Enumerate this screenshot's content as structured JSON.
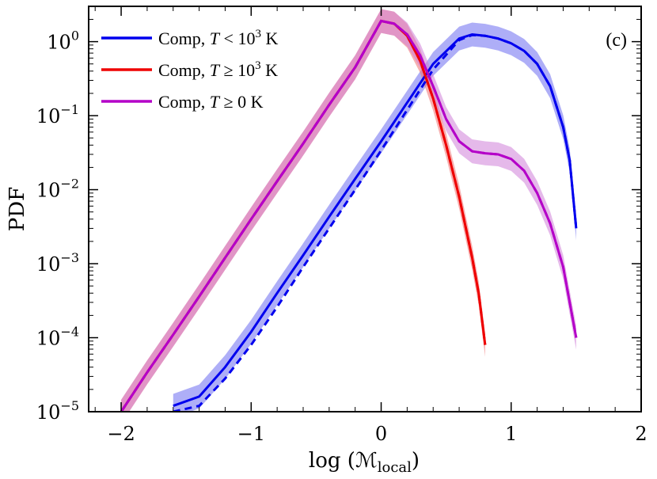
{
  "chart_data": {
    "type": "line",
    "panel_label": "(c)",
    "xlabel": "log (ℳ",
    "xlabel_sub": "local",
    "xlabel_close": ")",
    "ylabel": "PDF",
    "xlim": [
      -2.25,
      2.0
    ],
    "ylim": [
      1e-05,
      3.0
    ],
    "yscale": "log",
    "x_ticks": [
      -2,
      -1,
      0,
      1,
      2
    ],
    "x_tick_labels": [
      "−2",
      "−1",
      "0",
      "1",
      "2"
    ],
    "y_ticks": [
      1e-05,
      0.0001,
      0.001,
      0.01,
      0.1,
      1
    ],
    "y_tick_labels": [
      {
        "base": "10",
        "exp": "−5"
      },
      {
        "base": "10",
        "exp": "−4"
      },
      {
        "base": "10",
        "exp": "−3"
      },
      {
        "base": "10",
        "exp": "−2"
      },
      {
        "base": "10",
        "exp": "−1"
      },
      {
        "base": "10",
        "exp": "0"
      }
    ],
    "grid": false,
    "legend_position": "top-left",
    "series": [
      {
        "legend": {
          "prefix": "Comp, ",
          "var": "T",
          "rel": " < 10",
          "exp": "3",
          "unit": " K"
        },
        "color": "#0000ee",
        "band_color": "#6b6bf0",
        "x": [
          -1.6,
          -1.4,
          -1.2,
          -1.0,
          -0.8,
          -0.6,
          -0.4,
          -0.2,
          0.0,
          0.2,
          0.4,
          0.6,
          0.7,
          0.8,
          0.9,
          1.0,
          1.1,
          1.2,
          1.3,
          1.4,
          1.45,
          1.5
        ],
        "y": [
          1.2e-05,
          1.6e-05,
          4e-05,
          0.00012,
          0.0004,
          0.0013,
          0.0043,
          0.014,
          0.045,
          0.15,
          0.5,
          1.1,
          1.25,
          1.2,
          1.1,
          0.95,
          0.75,
          0.5,
          0.25,
          0.07,
          0.025,
          0.003
        ],
        "dashed_y": [
          1e-05,
          1.2e-05,
          2.8e-05,
          8e-05,
          0.00026,
          0.0009,
          0.003,
          0.01,
          0.034,
          0.12,
          0.42,
          1.05,
          1.23,
          1.2,
          1.1,
          0.95,
          0.75,
          0.5,
          0.25,
          0.07,
          0.025,
          0.003
        ]
      },
      {
        "legend": {
          "prefix": "Comp, ",
          "var": "T",
          "rel": " ≥ 10",
          "exp": "3",
          "unit": " K"
        },
        "color": "#ee0000",
        "band_color": "#f07070",
        "x": [
          -2.0,
          -1.8,
          -1.6,
          -1.4,
          -1.2,
          -1.0,
          -0.8,
          -0.6,
          -0.4,
          -0.2,
          0.0,
          0.1,
          0.2,
          0.3,
          0.4,
          0.5,
          0.6,
          0.7,
          0.75,
          0.8
        ],
        "y": [
          1e-05,
          3.4e-05,
          0.00011,
          0.00036,
          0.0012,
          0.004,
          0.013,
          0.042,
          0.14,
          0.45,
          1.9,
          1.75,
          1.2,
          0.55,
          0.17,
          0.04,
          0.008,
          0.0012,
          0.0004,
          8e-05
        ],
        "dashed_y": [
          1e-05,
          3.4e-05,
          0.00011,
          0.00036,
          0.0012,
          0.004,
          0.013,
          0.042,
          0.14,
          0.45,
          1.9,
          1.75,
          1.2,
          0.55,
          0.17,
          0.04,
          0.008,
          0.0012,
          0.0004,
          8e-05
        ]
      },
      {
        "legend": {
          "prefix": "Comp, ",
          "var": "T",
          "rel": " ≥ 0",
          "exp": "",
          "unit": " K"
        },
        "color": "#b400c8",
        "band_color": "#d080d8",
        "x": [
          -2.0,
          -1.8,
          -1.6,
          -1.4,
          -1.2,
          -1.0,
          -0.8,
          -0.6,
          -0.4,
          -0.2,
          0.0,
          0.1,
          0.2,
          0.3,
          0.4,
          0.5,
          0.6,
          0.7,
          0.8,
          0.9,
          1.0,
          1.1,
          1.2,
          1.3,
          1.4,
          1.5
        ],
        "y": [
          1e-05,
          3.4e-05,
          0.00011,
          0.00036,
          0.0012,
          0.004,
          0.013,
          0.042,
          0.14,
          0.45,
          1.9,
          1.75,
          1.25,
          0.65,
          0.25,
          0.09,
          0.045,
          0.033,
          0.031,
          0.03,
          0.026,
          0.018,
          0.009,
          0.0035,
          0.0009,
          0.0001
        ],
        "dashed_y": [
          1e-05,
          3.4e-05,
          0.00011,
          0.00036,
          0.0012,
          0.004,
          0.013,
          0.042,
          0.14,
          0.45,
          1.9,
          1.75,
          1.25,
          0.65,
          0.25,
          0.09,
          0.045,
          0.033,
          0.031,
          0.03,
          0.026,
          0.018,
          0.009,
          0.0035,
          0.0009,
          0.0001
        ]
      }
    ]
  }
}
